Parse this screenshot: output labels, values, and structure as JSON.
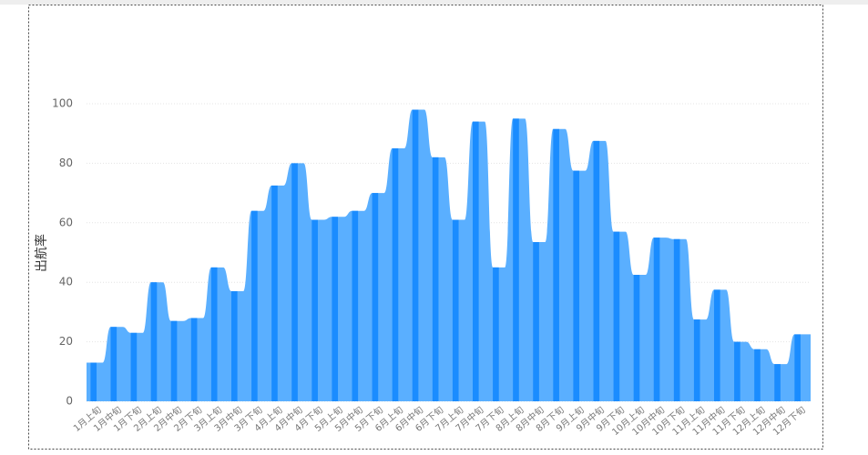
{
  "chart_data": {
    "type": "bar",
    "y_label": "出航率",
    "categories": [
      "1月上旬",
      "1月中旬",
      "1月下旬",
      "2月上旬",
      "2月中旬",
      "2月下旬",
      "3月上旬",
      "3月中旬",
      "3月下旬",
      "4月上旬",
      "4月中旬",
      "4月下旬",
      "5月上旬",
      "5月中旬",
      "5月下旬",
      "6月上旬",
      "6月中旬",
      "6月下旬",
      "7月上旬",
      "7月中旬",
      "7月下旬",
      "8月上旬",
      "8月中旬",
      "8月下旬",
      "9月上旬",
      "9月中旬",
      "9月下旬",
      "10月上旬",
      "10月中旬",
      "10月下旬",
      "11月上旬",
      "11月中旬",
      "11月下旬",
      "12月上旬",
      "12月中旬",
      "12月下旬"
    ],
    "values": [
      13,
      25,
      23,
      40,
      27,
      28,
      45,
      37,
      64,
      72.5,
      80,
      61,
      62,
      64,
      70,
      85,
      98,
      82,
      61,
      94,
      45,
      95,
      53.5,
      91.5,
      77.5,
      87.5,
      57,
      42.5,
      55,
      54.5,
      27.5,
      37.5,
      20,
      17.5,
      12.5,
      22.5
    ],
    "color": "#1a8cff",
    "area_color": "#5aafff",
    "ylim": [
      0,
      100
    ],
    "yticks": [
      0,
      20,
      40,
      60,
      80,
      100
    ],
    "grid": true
  }
}
